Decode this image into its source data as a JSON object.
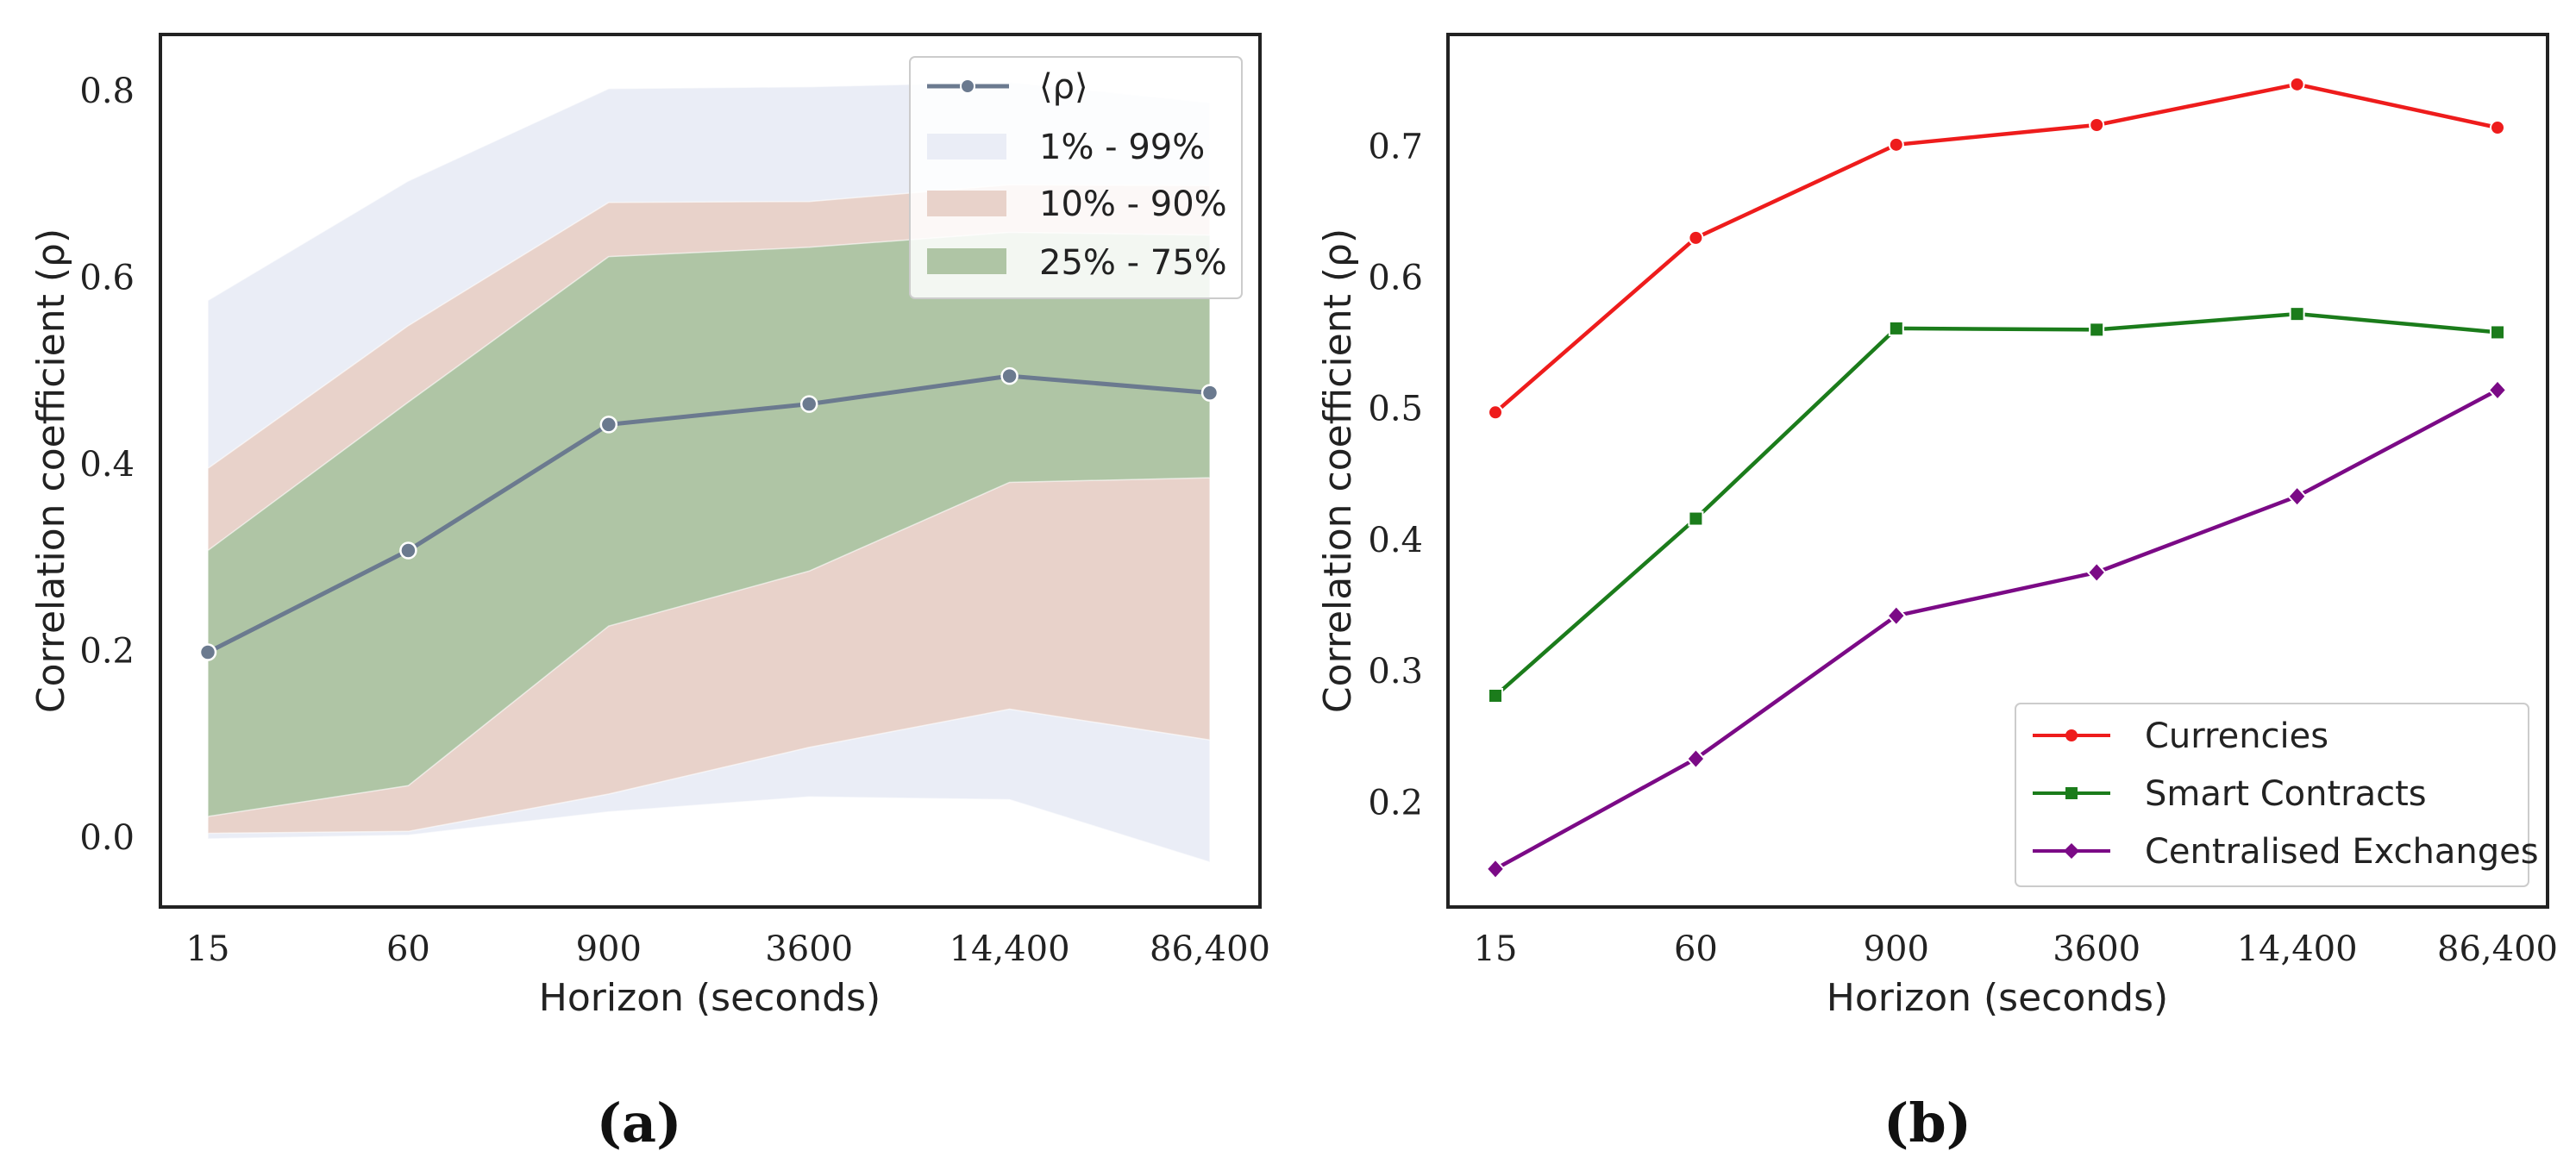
{
  "chart_data": [
    {
      "type": "area",
      "panel_label": "(a)",
      "categories": [
        "15",
        "60",
        "900",
        "3600",
        "14,400",
        "86,400"
      ],
      "xlabel": "Horizon (seconds)",
      "ylabel": "Correlation coefficient (ρ)",
      "ylim": [
        -0.075,
        0.86
      ],
      "yticks": [
        0.0,
        0.2,
        0.4,
        0.6,
        0.8
      ],
      "ytick_labels": [
        "0.0",
        "0.2",
        "0.4",
        "0.6",
        "0.8"
      ],
      "grid": false,
      "legend_position": "top-right",
      "mean": {
        "name": "⟨ρ⟩",
        "color": "#6b7a8f",
        "values": [
          0.198,
          0.307,
          0.442,
          0.464,
          0.494,
          0.476
        ]
      },
      "bands": [
        {
          "name": "1% - 99%",
          "color": "#eaedf6",
          "lower": [
            -0.002,
            0.002,
            0.027,
            0.043,
            0.04,
            -0.027
          ],
          "upper": [
            0.575,
            0.703,
            0.802,
            0.804,
            0.809,
            0.787
          ]
        },
        {
          "name": "10% - 90%",
          "color": "#e8d2ca",
          "lower": [
            0.004,
            0.006,
            0.046,
            0.096,
            0.137,
            0.104
          ],
          "upper": [
            0.395,
            0.548,
            0.68,
            0.681,
            0.699,
            0.698
          ]
        },
        {
          "name": "25% - 75%",
          "color": "#afc5a5",
          "lower": [
            0.022,
            0.055,
            0.226,
            0.285,
            0.38,
            0.385
          ],
          "upper": [
            0.307,
            0.466,
            0.622,
            0.632,
            0.648,
            0.645
          ]
        }
      ]
    },
    {
      "type": "line",
      "panel_label": "(b)",
      "categories": [
        "15",
        "60",
        "900",
        "3600",
        "14,400",
        "86,400"
      ],
      "xlabel": "Horizon (seconds)",
      "ylabel": "Correlation coefficient (ρ)",
      "ylim": [
        0.12,
        0.785
      ],
      "yticks": [
        0.2,
        0.3,
        0.4,
        0.5,
        0.6,
        0.7
      ],
      "ytick_labels": [
        "0.2",
        "0.3",
        "0.4",
        "0.5",
        "0.6",
        "0.7"
      ],
      "grid": false,
      "legend_position": "bottom-right",
      "series": [
        {
          "name": "Currencies",
          "color": "#ee1c1c",
          "marker": "circle",
          "values": [
            0.497,
            0.63,
            0.701,
            0.716,
            0.747,
            0.714
          ]
        },
        {
          "name": "Smart Contracts",
          "color": "#1b7c1b",
          "marker": "square",
          "values": [
            0.281,
            0.416,
            0.561,
            0.56,
            0.572,
            0.558
          ]
        },
        {
          "name": "Centralised Exchanges",
          "color": "#7b0a86",
          "marker": "diamond",
          "values": [
            0.149,
            0.233,
            0.342,
            0.375,
            0.433,
            0.514
          ]
        }
      ]
    }
  ]
}
